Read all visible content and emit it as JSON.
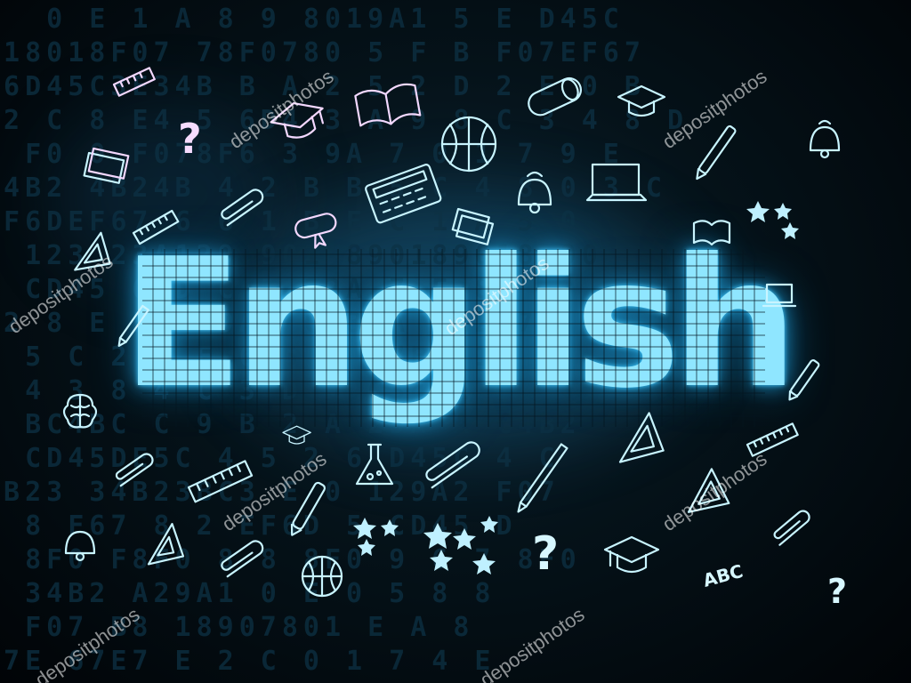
{
  "title": "English",
  "icons": {
    "question_mark": "question-mark-icon",
    "abc": "ABC"
  },
  "watermark": "depositphotos",
  "colors": {
    "background": "#02070b",
    "title_glow": "#3fc8ff",
    "doodle_cyan": "#c8f4ff",
    "doodle_pink": "#f3d8ff"
  }
}
